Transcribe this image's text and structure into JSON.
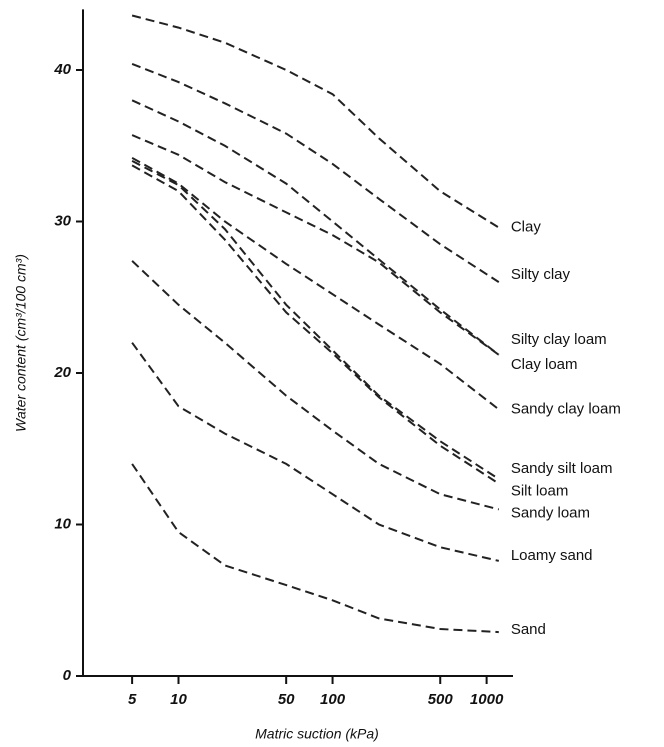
{
  "chart_data": {
    "type": "line",
    "x_label": "Matric suction (kPa)",
    "y_label": "Water content (cm³/100 cm³)",
    "x": [
      5,
      10,
      20,
      50,
      100,
      200,
      500,
      1200
    ],
    "xlim": [
      2.4,
      2000
    ],
    "xticks": [
      5,
      10,
      50,
      100,
      500,
      1000
    ],
    "xscale": "log",
    "ylim": [
      0,
      44
    ],
    "yticks": [
      0,
      10,
      20,
      30,
      40
    ],
    "color": "#222",
    "series": [
      {
        "name": "Clay",
        "values": [
          43.6,
          42.8,
          41.8,
          40,
          38.4,
          35.5,
          32,
          29.6
        ]
      },
      {
        "name": "Silty clay",
        "values": [
          40.4,
          39.2,
          37.8,
          35.8,
          33.8,
          31.5,
          28.5,
          26
        ]
      },
      {
        "name": "Silty clay loam",
        "values": [
          38,
          36.6,
          35,
          32.5,
          30,
          27.5,
          24.2,
          21.2
        ]
      },
      {
        "name": "Clay loam",
        "values": [
          35.7,
          34.4,
          32.6,
          30.6,
          29.1,
          27.3,
          24,
          21.2
        ]
      },
      {
        "name": "Sandy clay loam",
        "values": [
          34.2,
          32.5,
          30,
          27.2,
          25.2,
          23.2,
          20.6,
          17.6
        ]
      },
      {
        "name": "Sandy silt loam",
        "values": [
          34,
          32.4,
          29.5,
          24.5,
          21.5,
          18.5,
          15.5,
          13
        ]
      },
      {
        "name": "Silt loam",
        "values": [
          33.7,
          32,
          28.8,
          24,
          21.3,
          18.4,
          15.2,
          12.7
        ]
      },
      {
        "name": "Sandy loam",
        "values": [
          27.4,
          24.5,
          22,
          18.5,
          16.2,
          14,
          12,
          11
        ]
      },
      {
        "name": "Loamy sand",
        "values": [
          22,
          17.8,
          16,
          14,
          12,
          10,
          8.5,
          7.6
        ]
      },
      {
        "name": "Sand",
        "values": [
          14,
          9.5,
          7.3,
          6,
          5,
          3.8,
          3.1,
          2.9
        ]
      }
    ]
  }
}
